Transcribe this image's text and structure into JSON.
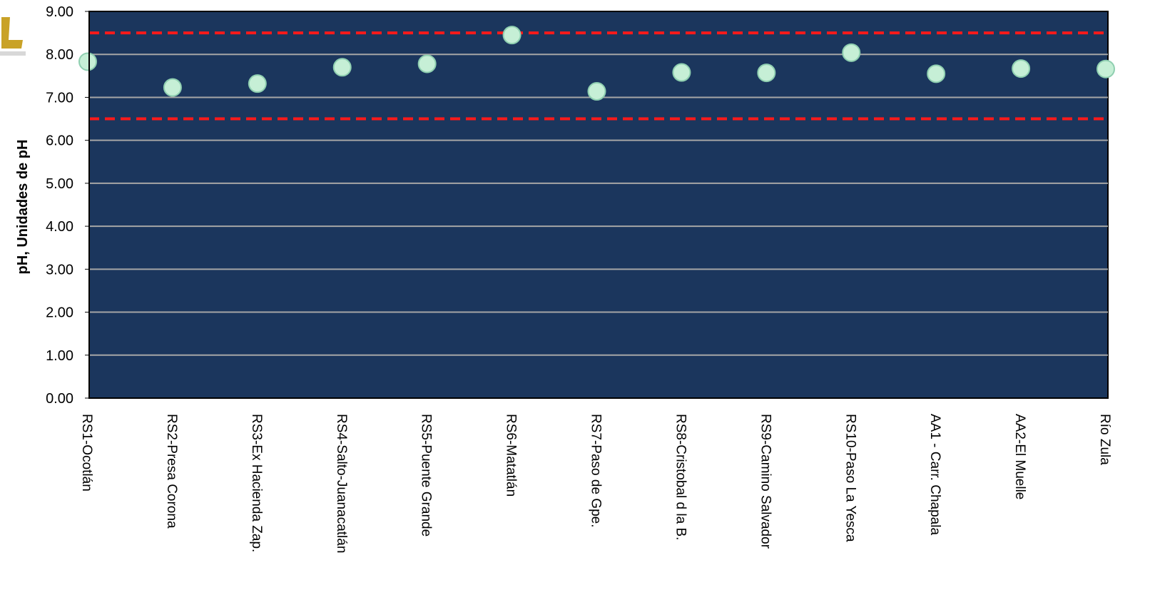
{
  "chart_data": {
    "type": "scatter",
    "ylabel": "pH, Unidades de pH",
    "xlabel": "",
    "title": "",
    "ylim": [
      0,
      9
    ],
    "y_ticks": [
      "0.00",
      "1.00",
      "2.00",
      "3.00",
      "4.00",
      "5.00",
      "6.00",
      "7.00",
      "8.00",
      "9.00"
    ],
    "grid": true,
    "categories": [
      "RS1-Ocotlán",
      "RS2-Presa Corona",
      "RS3-Ex Hacienda Zap.",
      "RS4-Salto-Juanacatlán",
      "RS5-Puente Grande",
      "RS6-Matatlán",
      "RS7-Paso de Gpe.",
      "RS8-Cristobal d la B.",
      "RS9-Camino Salvador",
      "RS10-Paso La Yesca",
      "AA1 - Carr. Chapala",
      "AA2-El Muelle",
      "Río Zula"
    ],
    "values": [
      7.83,
      7.23,
      7.32,
      7.7,
      7.78,
      8.45,
      7.14,
      7.58,
      7.57,
      8.04,
      7.55,
      7.67,
      7.66
    ],
    "reference_lines": [
      {
        "value": 8.5,
        "color": "#ff1a1a",
        "style": "dashed"
      },
      {
        "value": 6.5,
        "color": "#ff1a1a",
        "style": "dashed"
      }
    ],
    "colors": {
      "plot_background": "#1b365d",
      "gridline": "#a6a6a6",
      "marker_fill": "#c6efd6",
      "marker_stroke": "#8fcfb0"
    }
  }
}
